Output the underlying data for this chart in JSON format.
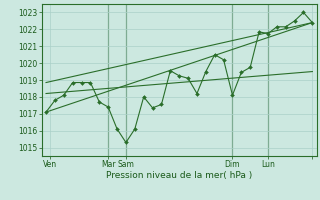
{
  "title": "Pression niveau de la mer( hPa )",
  "ylabel_values": [
    1015,
    1016,
    1017,
    1018,
    1019,
    1020,
    1021,
    1022,
    1023
  ],
  "ylim": [
    1014.5,
    1023.5
  ],
  "background_color": "#cce8e0",
  "grid_color": "#aad0c8",
  "line_color": "#2a6e2a",
  "marker_color": "#2a6e2a",
  "fig_bg": "#cce8e0",
  "main_series_x": [
    0,
    1,
    2,
    3,
    4,
    5,
    6,
    7,
    8,
    9,
    10,
    11,
    12,
    13,
    14,
    15,
    16,
    17,
    18,
    19,
    20,
    21,
    22,
    23,
    24,
    25,
    26,
    27,
    28,
    29,
    30
  ],
  "main_series_y": [
    1017.1,
    1017.8,
    1018.1,
    1018.85,
    1018.85,
    1018.85,
    1017.7,
    1017.4,
    1016.1,
    1015.3,
    1016.1,
    1018.0,
    1017.35,
    1017.55,
    1019.55,
    1019.25,
    1019.1,
    1018.2,
    1019.5,
    1020.5,
    1020.2,
    1018.1,
    1019.45,
    1019.75,
    1021.85,
    1021.75,
    1022.15,
    1022.15,
    1022.5,
    1023.0,
    1022.4
  ],
  "trend_lines": [
    [
      0,
      1017.1,
      30,
      1022.4
    ],
    [
      0,
      1018.85,
      30,
      1022.4
    ],
    [
      0,
      1018.2,
      30,
      1019.5
    ]
  ],
  "vlines_x": [
    7,
    9,
    21,
    25
  ],
  "xtick_positions": [
    0.5,
    7,
    9,
    21,
    25,
    30
  ],
  "xtick_labels": [
    "Ven",
    "Mar",
    "Sam",
    "Dim",
    "Lun",
    ""
  ],
  "xlim": [
    -0.5,
    30.5
  ]
}
